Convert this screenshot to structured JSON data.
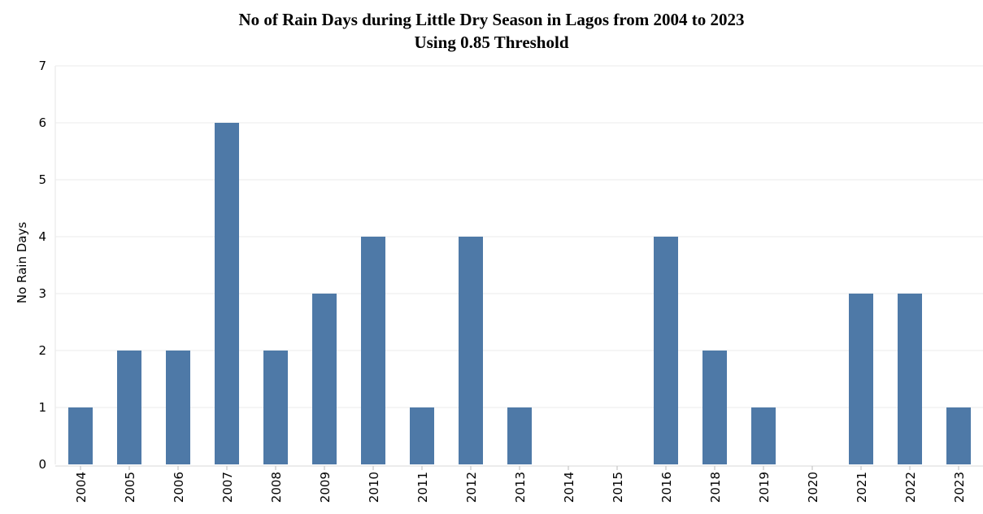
{
  "chart_data": {
    "type": "bar",
    "title": "No of Rain Days during Little Dry Season in Lagos from 2004 to 2023",
    "subtitle": "Using 0.85 Threshold",
    "xlabel": "",
    "ylabel": "No Rain Days",
    "ylim": [
      0,
      7
    ],
    "yticks": [
      0,
      1,
      2,
      3,
      4,
      5,
      6,
      7
    ],
    "grid": true,
    "bar_color": "#4e79a7",
    "categories": [
      "2004",
      "2005",
      "2006",
      "2007",
      "2008",
      "2009",
      "2010",
      "2011",
      "2012",
      "2013",
      "2014",
      "2015",
      "2016",
      "2018",
      "2019",
      "2020",
      "2021",
      "2022",
      "2023"
    ],
    "values": [
      1,
      2,
      2,
      6,
      2,
      3,
      4,
      1,
      4,
      1,
      0,
      0,
      4,
      2,
      1,
      0,
      3,
      3,
      1
    ]
  }
}
